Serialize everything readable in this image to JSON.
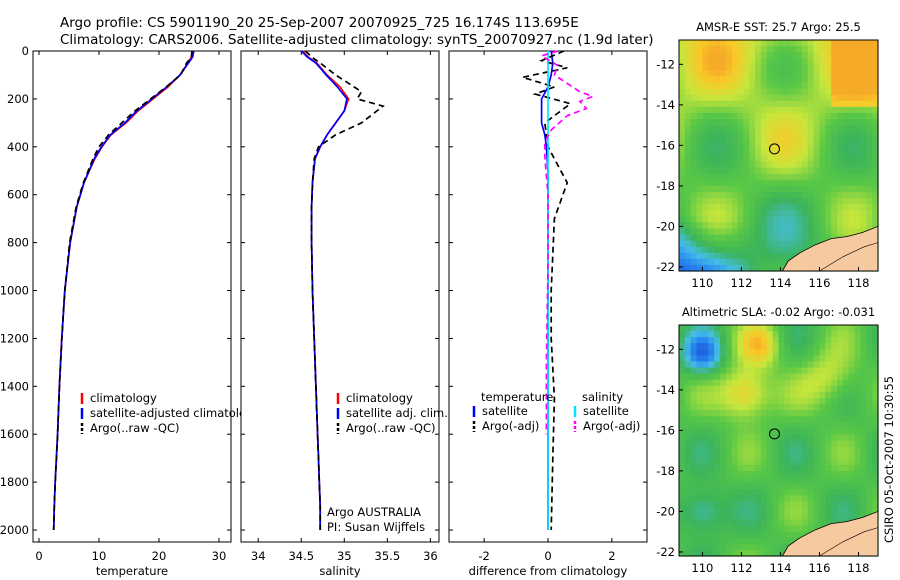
{
  "header": {
    "line1": "Argo profile: CS 5901190_20 25-Sep-2007 20070925_725 16.174S 113.695E",
    "line2": "Climatology: CARS2006. Satellite-adjusted climatology: synTS_20070927.nc (1.9d later)"
  },
  "side_label": "CSIRO 05-Oct-2007 10:30:55",
  "colors": {
    "climatology": "#ff0000",
    "satellite": "#0000ff",
    "argo": "#000000",
    "satellite_diff": "#00e5ff",
    "argo_sal_diff": "#ff00ff",
    "land": "#f7c9a0"
  },
  "chart_data": [
    {
      "id": "temperature",
      "type": "line",
      "xlabel": "temperature",
      "ylabel": "",
      "xlim": [
        -1,
        32
      ],
      "ylim": [
        2050,
        0
      ],
      "xticks": [
        "0",
        "10",
        "20",
        "30"
      ],
      "xtick_values": [
        0,
        10,
        20,
        30
      ],
      "yticks": [
        "0",
        "200",
        "400",
        "600",
        "800",
        "1000",
        "1200",
        "1400",
        "1600",
        "1800",
        "2000"
      ],
      "ytick_values": [
        0,
        200,
        400,
        600,
        800,
        1000,
        1200,
        1400,
        1600,
        1800,
        2000
      ],
      "legend": [
        "climatology",
        "satellite-adjusted climatology",
        "Argo(..raw -QC)"
      ],
      "series": [
        {
          "name": "climatology",
          "color": "#ff0000",
          "dash": "",
          "x": [
            25.6,
            25.4,
            24.8,
            23.5,
            21.5,
            19.0,
            16.5,
            14.5,
            12.0,
            10.5,
            9.3,
            7.5,
            6.3,
            5.2,
            4.3,
            3.8,
            3.4,
            3.1,
            2.9,
            2.7,
            2.55,
            2.45
          ],
          "y": [
            0,
            25,
            50,
            100,
            150,
            200,
            250,
            300,
            350,
            400,
            450,
            550,
            650,
            800,
            1000,
            1200,
            1400,
            1600,
            1700,
            1800,
            1900,
            2000
          ]
        },
        {
          "name": "satellite-adjusted climatology",
          "color": "#0000ff",
          "dash": "",
          "x": [
            25.8,
            25.6,
            24.9,
            23.5,
            21.3,
            18.8,
            16.3,
            14.3,
            11.9,
            10.4,
            9.2,
            7.5,
            6.3,
            5.2,
            4.3,
            3.8,
            3.4,
            3.1,
            2.9,
            2.7,
            2.55,
            2.45
          ],
          "y": [
            0,
            25,
            50,
            100,
            150,
            200,
            250,
            300,
            350,
            400,
            450,
            550,
            650,
            800,
            1000,
            1200,
            1400,
            1600,
            1700,
            1800,
            1900,
            2000
          ]
        },
        {
          "name": "Argo(..raw -QC)",
          "color": "#000000",
          "dash": "6,4",
          "x": [
            25.5,
            25.4,
            24.6,
            23.6,
            21.2,
            18.6,
            16.0,
            13.8,
            11.6,
            10.0,
            9.0,
            7.4,
            6.2,
            5.1,
            4.3,
            3.8,
            3.4,
            3.1,
            2.9,
            2.7,
            2.55,
            2.45
          ],
          "y": [
            0,
            25,
            50,
            100,
            150,
            200,
            250,
            300,
            350,
            400,
            450,
            550,
            650,
            800,
            1000,
            1200,
            1400,
            1600,
            1700,
            1800,
            1900,
            2000
          ]
        }
      ]
    },
    {
      "id": "salinity",
      "type": "line",
      "xlabel": "salinity",
      "ylabel": "",
      "xlim": [
        33.8,
        36.1
      ],
      "ylim": [
        2050,
        0
      ],
      "xticks": [
        "34",
        "34.5",
        "35",
        "35.5",
        "36"
      ],
      "xtick_values": [
        34,
        34.5,
        35,
        35.5,
        36
      ],
      "yticks": [],
      "ytick_values": [
        0,
        200,
        400,
        600,
        800,
        1000,
        1200,
        1400,
        1600,
        1800,
        2000
      ],
      "legend": [
        "climatology",
        "satellite adj. clim.",
        "Argo(..raw -QC)"
      ],
      "annotation": [
        "Argo AUSTRALIA",
        "PI: Susan Wijffels"
      ],
      "series": [
        {
          "name": "climatology",
          "color": "#ff0000",
          "dash": "",
          "x": [
            34.52,
            34.58,
            34.68,
            34.8,
            34.95,
            35.05,
            35.0,
            34.9,
            34.8,
            34.72,
            34.66,
            34.63,
            34.62,
            34.62,
            34.63,
            34.65,
            34.67,
            34.69,
            34.7,
            34.71,
            34.72,
            34.72
          ],
          "y": [
            0,
            25,
            50,
            100,
            150,
            200,
            250,
            300,
            350,
            400,
            450,
            550,
            650,
            800,
            1000,
            1200,
            1400,
            1600,
            1700,
            1800,
            1900,
            2000
          ]
        },
        {
          "name": "satellite adj. clim.",
          "color": "#0000ff",
          "dash": "",
          "x": [
            34.5,
            34.57,
            34.67,
            34.79,
            34.92,
            35.03,
            35.0,
            34.9,
            34.8,
            34.72,
            34.66,
            34.63,
            34.62,
            34.62,
            34.63,
            34.65,
            34.67,
            34.69,
            34.7,
            34.71,
            34.72,
            34.72
          ],
          "y": [
            0,
            25,
            50,
            100,
            150,
            200,
            250,
            300,
            350,
            400,
            450,
            550,
            650,
            800,
            1000,
            1200,
            1400,
            1600,
            1700,
            1800,
            1900,
            2000
          ]
        },
        {
          "name": "Argo(..raw -QC)",
          "color": "#000000",
          "dash": "6,4",
          "x": [
            34.55,
            34.62,
            34.72,
            34.9,
            35.2,
            35.15,
            35.45,
            35.2,
            34.9,
            34.7,
            34.65,
            34.63,
            34.62,
            34.62,
            34.63,
            34.65,
            34.67,
            34.69,
            34.7,
            34.71,
            34.72,
            34.72
          ],
          "y": [
            0,
            25,
            50,
            100,
            170,
            200,
            230,
            300,
            350,
            400,
            450,
            550,
            650,
            800,
            1000,
            1200,
            1400,
            1600,
            1700,
            1800,
            1900,
            2000
          ]
        }
      ]
    },
    {
      "id": "difference",
      "type": "line",
      "xlabel": "difference from climatology",
      "ylabel": "",
      "xlim": [
        -3.1,
        3.1
      ],
      "ylim": [
        2050,
        0
      ],
      "xticks": [
        "-2",
        "0",
        "2"
      ],
      "xtick_values": [
        -2,
        0,
        2
      ],
      "yticks": [],
      "ytick_values": [
        0,
        200,
        400,
        600,
        800,
        1000,
        1200,
        1400,
        1600,
        1800,
        2000
      ],
      "legend_headers": [
        "temperature",
        "salinity"
      ],
      "legend": [
        "satellite",
        "Argo(-adj)",
        "satellite",
        "Argo(-adj)"
      ],
      "series": [
        {
          "name": "temperature satellite",
          "color": "#0000ff",
          "dash": "",
          "x": [
            0.1,
            0.15,
            0.1,
            0.0,
            -0.2,
            -0.2,
            -0.2,
            -0.1,
            -0.05,
            0.0,
            0.0,
            0.0,
            0.0,
            0.0,
            0.0
          ],
          "y": [
            0,
            50,
            100,
            150,
            200,
            250,
            300,
            350,
            400,
            500,
            600,
            800,
            1200,
            1600,
            2000
          ]
        },
        {
          "name": "temperature Argo(-adj)",
          "color": "#000000",
          "dash": "6,4",
          "x": [
            0.5,
            -0.2,
            0.6,
            -0.8,
            0.2,
            -0.4,
            0.7,
            0.4,
            -0.1,
            0.0,
            0.6,
            0.2,
            0.1,
            0.1,
            0.2,
            0.15,
            0.1
          ],
          "y": [
            0,
            40,
            70,
            110,
            150,
            180,
            220,
            250,
            300,
            400,
            550,
            700,
            1000,
            1200,
            1450,
            1700,
            2000
          ]
        },
        {
          "name": "salinity satellite",
          "color": "#00e5ff",
          "dash": "",
          "x": [
            0.0,
            0.0,
            0.0,
            0.0,
            0.0,
            0.0,
            0.0,
            0.0,
            0.0
          ],
          "y": [
            0,
            100,
            200,
            300,
            400,
            800,
            1200,
            1600,
            2000
          ]
        },
        {
          "name": "salinity Argo(-adj)",
          "color": "#ff00ff",
          "dash": "6,4",
          "x": [
            0.3,
            -0.2,
            0.3,
            0.2,
            1.0,
            1.4,
            1.0,
            1.2,
            0.6,
            0.1,
            -0.1,
            -0.1,
            0.0,
            0.0,
            -0.05,
            -0.05
          ],
          "y": [
            0,
            20,
            60,
            100,
            170,
            190,
            210,
            240,
            270,
            330,
            380,
            440,
            600,
            900,
            1300,
            1600
          ]
        }
      ]
    },
    {
      "id": "sst-map",
      "type": "heatmap",
      "title": "AMSR-E SST: 25.7  Argo: 25.5",
      "xlim": [
        108.8,
        119.0
      ],
      "ylim": [
        -22.2,
        -10.8
      ],
      "xticks": [
        "110",
        "112",
        "114",
        "116",
        "118"
      ],
      "xtick_values": [
        110,
        112,
        114,
        116,
        118
      ],
      "yticks": [
        "-12",
        "-14",
        "-16",
        "-18",
        "-20",
        "-22"
      ],
      "ytick_values": [
        -12,
        -14,
        -16,
        -18,
        -20,
        -22
      ],
      "marker": {
        "lon": 113.695,
        "lat": -16.174
      }
    },
    {
      "id": "sla-map",
      "type": "heatmap",
      "title": "Altimetric SLA: -0.02  Argo: -0.031",
      "xlim": [
        108.8,
        119.0
      ],
      "ylim": [
        -22.2,
        -10.8
      ],
      "xticks": [
        "110",
        "112",
        "114",
        "116",
        "118"
      ],
      "xtick_values": [
        110,
        112,
        114,
        116,
        118
      ],
      "yticks": [
        "-12",
        "-14",
        "-16",
        "-18",
        "-20",
        "-22"
      ],
      "ytick_values": [
        -12,
        -14,
        -16,
        -18,
        -20,
        -22
      ],
      "marker": {
        "lon": 113.695,
        "lat": -16.174
      }
    }
  ]
}
